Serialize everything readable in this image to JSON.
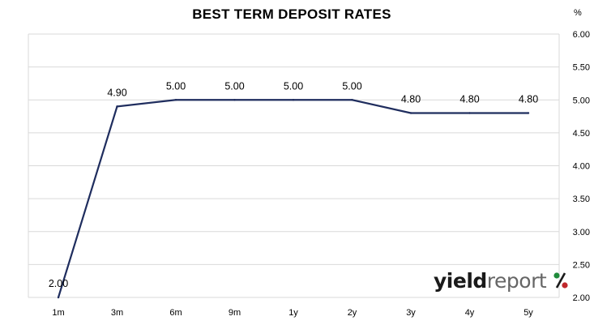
{
  "chart_data": {
    "type": "line",
    "title": "BEST TERM DEPOSIT RATES",
    "unit": "%",
    "categories": [
      "1m",
      "3m",
      "6m",
      "9m",
      "1y",
      "2y",
      "3y",
      "4y",
      "5y"
    ],
    "series": [
      {
        "values": [
          2.0,
          4.9,
          5.0,
          5.0,
          5.0,
          5.0,
          4.8,
          4.8,
          4.8
        ]
      }
    ],
    "data_labels": [
      "2.00",
      "4.90",
      "5.00",
      "5.00",
      "5.00",
      "5.00",
      "4.80",
      "4.80",
      "4.80"
    ],
    "y_ticks": [
      "2.00",
      "2.50",
      "3.00",
      "3.50",
      "4.00",
      "4.50",
      "5.00",
      "5.50",
      "6.00"
    ],
    "ylim": [
      2.0,
      6.0
    ],
    "y_axis_side": "right",
    "grid": true,
    "line_color": "#1f2d5e"
  },
  "logo": {
    "word1": "yield",
    "word2": "report",
    "symbol": "%"
  }
}
